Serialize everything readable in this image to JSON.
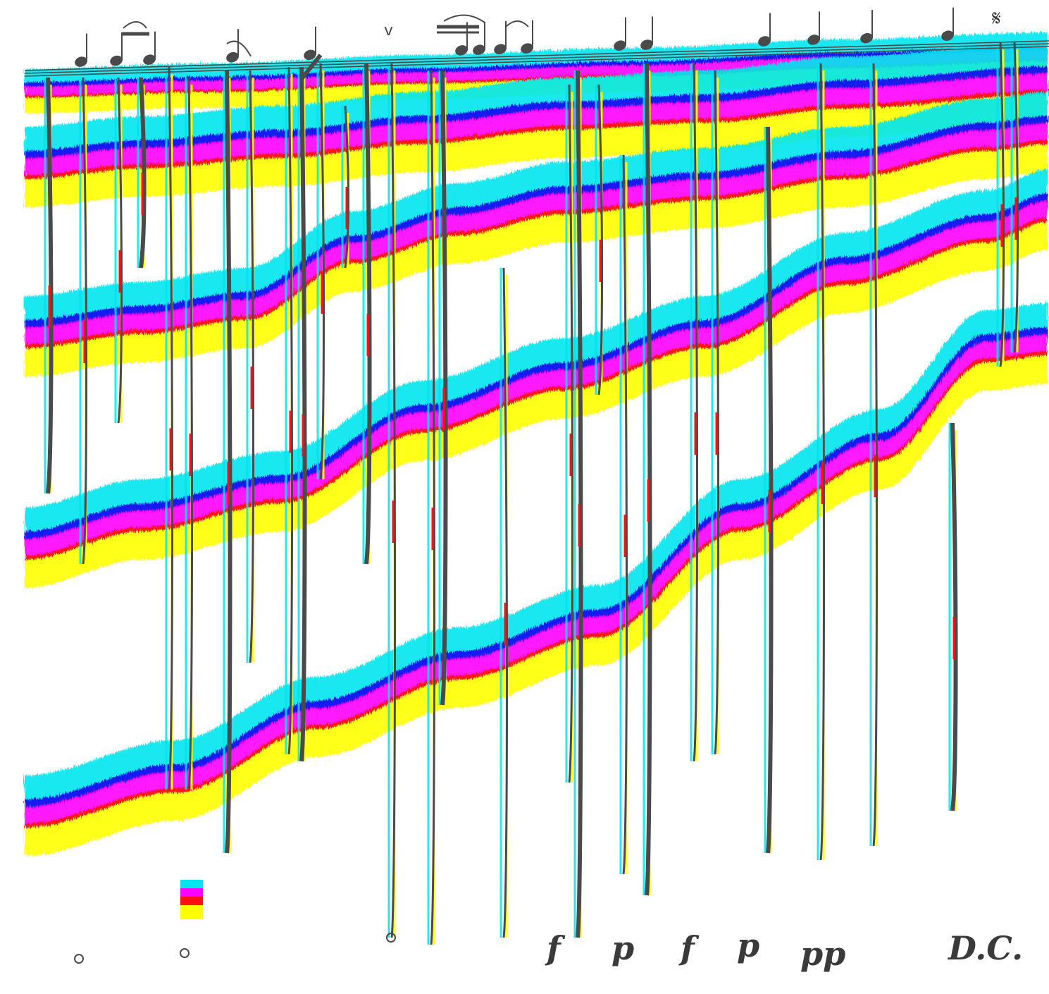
{
  "palette": {
    "cyan": "#00e5ee",
    "blue": "#1010ee",
    "magenta": "#ff00ff",
    "red": "#ff1010",
    "yellow": "#ffff00",
    "ink": "#4a4a4a",
    "background": "#ffffff"
  },
  "markings": {
    "f1": "f",
    "p1": "p",
    "f2": "f",
    "p2": "p",
    "pp": "pp",
    "dc": "D.C.",
    "segno": "𝄋"
  }
}
